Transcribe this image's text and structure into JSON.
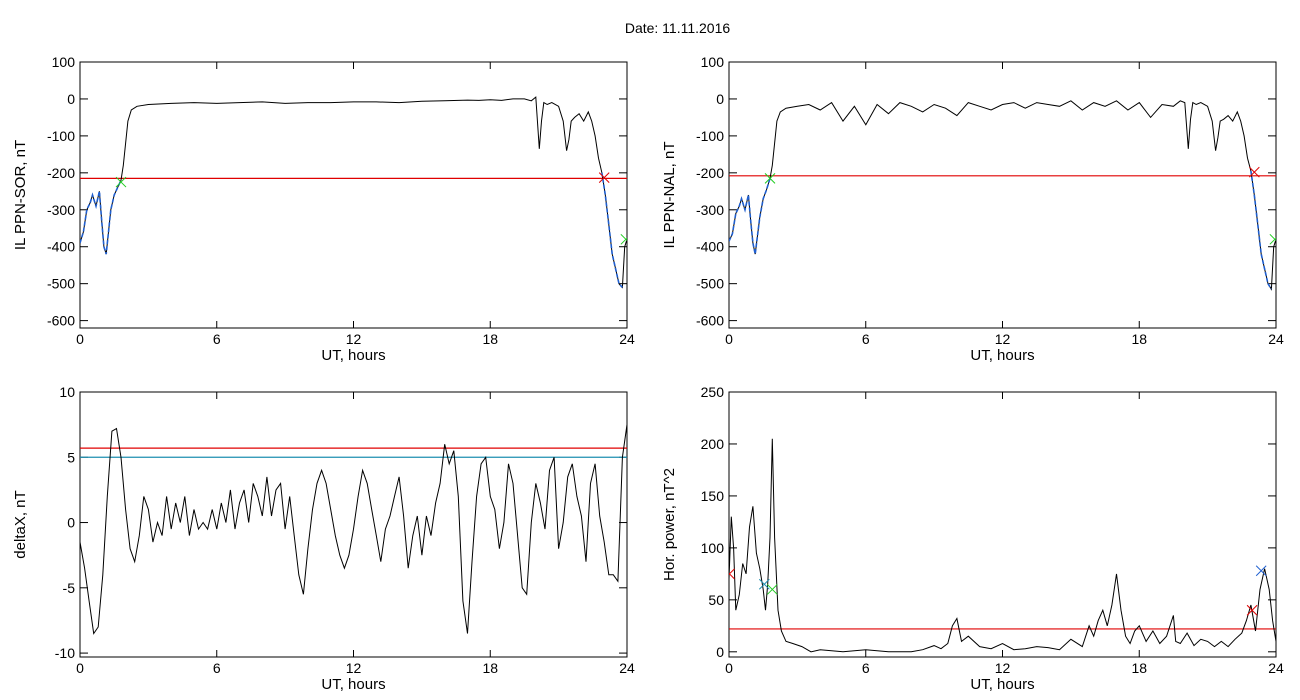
{
  "figure": {
    "title": "Date:  11.11.2016"
  },
  "chart_data": [
    {
      "type": "line",
      "id": "sor",
      "xlabel": "UT, hours",
      "ylabel": "IL PPN-SOR, nT",
      "xlim": [
        0,
        24
      ],
      "ylim": [
        -620,
        100
      ],
      "x_ticks": [
        0,
        6,
        12,
        18,
        24
      ],
      "y_ticks": [
        -600,
        -500,
        -400,
        -300,
        -200,
        -100,
        0,
        100
      ],
      "series": [
        {
          "color": "#000000",
          "x": [
            0,
            0.15,
            0.3,
            0.45,
            0.55,
            0.7,
            0.85,
            0.95,
            1.05,
            1.15,
            1.25,
            1.35,
            1.5,
            1.65,
            1.8,
            1.9,
            2.0,
            2.1,
            2.25,
            2.5,
            3,
            4,
            5,
            6,
            7,
            8,
            9,
            10,
            11,
            12,
            13,
            14,
            15,
            16,
            17,
            17.5,
            18,
            18.5,
            19,
            19.5,
            19.8,
            20.0,
            20.15,
            20.25,
            20.35,
            20.5,
            20.7,
            21.0,
            21.2,
            21.35,
            21.45,
            21.55,
            21.7,
            21.9,
            22.1,
            22.3,
            22.45,
            22.6,
            22.75,
            22.9,
            23.05,
            23.2,
            23.35,
            23.5,
            23.65,
            23.8,
            23.9,
            24.0
          ],
          "y": [
            -390,
            -360,
            -300,
            -280,
            -260,
            -290,
            -250,
            -330,
            -400,
            -420,
            -360,
            -300,
            -260,
            -240,
            -220,
            -180,
            -120,
            -60,
            -30,
            -20,
            -15,
            -12,
            -10,
            -12,
            -10,
            -8,
            -12,
            -10,
            -10,
            -8,
            -8,
            -10,
            -6,
            -5,
            -3,
            -4,
            -2,
            -4,
            0,
            0,
            -5,
            5,
            -135,
            -60,
            -10,
            -15,
            -10,
            -20,
            -60,
            -140,
            -110,
            -60,
            -50,
            -40,
            -60,
            -35,
            -60,
            -100,
            -160,
            -200,
            -260,
            -340,
            -420,
            -460,
            -500,
            -510,
            -400,
            -380
          ]
        },
        {
          "color": "#1f5fd0",
          "x": [
            0,
            0.15,
            0.3,
            0.45,
            0.55,
            0.7,
            0.85,
            0.95,
            1.05,
            1.15,
            1.25,
            1.35,
            1.5,
            1.65,
            1.8
          ],
          "y": [
            -390,
            -360,
            -300,
            -280,
            -260,
            -290,
            -250,
            -330,
            -400,
            -420,
            -360,
            -300,
            -260,
            -240,
            -220
          ]
        },
        {
          "color": "#1f5fd0",
          "x": [
            22.9,
            23.05,
            23.2,
            23.35,
            23.5,
            23.65,
            23.8
          ],
          "y": [
            -200,
            -260,
            -340,
            -420,
            -460,
            -500,
            -510
          ]
        }
      ],
      "hlines": [
        {
          "y": -215,
          "color": "#e00000"
        }
      ],
      "markers": [
        {
          "x": 1.8,
          "y": -225,
          "color": "#22cc22"
        },
        {
          "x": 23.0,
          "y": -213,
          "color": "#e00000"
        },
        {
          "x": 23.95,
          "y": -380,
          "color": "#22cc22"
        }
      ]
    },
    {
      "type": "line",
      "id": "nal",
      "xlabel": "UT, hours",
      "ylabel": "IL PPN-NAL, nT",
      "xlim": [
        0,
        24
      ],
      "ylim": [
        -620,
        100
      ],
      "x_ticks": [
        0,
        6,
        12,
        18,
        24
      ],
      "y_ticks": [
        -600,
        -500,
        -400,
        -300,
        -200,
        -100,
        0,
        100
      ],
      "series": [
        {
          "color": "#000000",
          "x": [
            0,
            0.15,
            0.3,
            0.45,
            0.55,
            0.7,
            0.85,
            0.95,
            1.05,
            1.15,
            1.25,
            1.35,
            1.5,
            1.65,
            1.8,
            1.9,
            2.0,
            2.1,
            2.25,
            2.5,
            3,
            3.5,
            4,
            4.5,
            5,
            5.5,
            6,
            6.5,
            7,
            7.5,
            8,
            8.5,
            9,
            9.5,
            10,
            10.5,
            11,
            11.5,
            12,
            12.5,
            13,
            13.5,
            14,
            14.5,
            15,
            15.5,
            16,
            16.5,
            17,
            17.5,
            18,
            18.5,
            19,
            19.5,
            19.8,
            20.0,
            20.15,
            20.25,
            20.35,
            20.5,
            20.7,
            21.0,
            21.2,
            21.35,
            21.45,
            21.55,
            21.7,
            21.9,
            22.1,
            22.3,
            22.45,
            22.6,
            22.75,
            22.9,
            23.05,
            23.2,
            23.35,
            23.5,
            23.65,
            23.8,
            23.9,
            24.0
          ],
          "y": [
            -385,
            -365,
            -310,
            -290,
            -270,
            -300,
            -260,
            -330,
            -390,
            -420,
            -370,
            -320,
            -270,
            -245,
            -215,
            -180,
            -120,
            -60,
            -35,
            -25,
            -20,
            -15,
            -30,
            -10,
            -60,
            -20,
            -70,
            -15,
            -40,
            -10,
            -20,
            -35,
            -15,
            -25,
            -45,
            -10,
            -20,
            -30,
            -15,
            -10,
            -25,
            -10,
            -15,
            -20,
            -5,
            -30,
            -10,
            -20,
            -5,
            -30,
            -10,
            -50,
            -15,
            -20,
            -5,
            -10,
            -135,
            -55,
            -10,
            -15,
            -10,
            -20,
            -60,
            -140,
            -105,
            -60,
            -55,
            -45,
            -60,
            -35,
            -60,
            -100,
            -160,
            -195,
            -260,
            -340,
            -420,
            -460,
            -500,
            -515,
            -400,
            -380
          ]
        },
        {
          "color": "#1f5fd0",
          "x": [
            0,
            0.15,
            0.3,
            0.45,
            0.55,
            0.7,
            0.85,
            0.95,
            1.05,
            1.15,
            1.25,
            1.35,
            1.5,
            1.65,
            1.8
          ],
          "y": [
            -385,
            -365,
            -310,
            -290,
            -270,
            -300,
            -260,
            -330,
            -390,
            -420,
            -370,
            -320,
            -270,
            -245,
            -215
          ]
        },
        {
          "color": "#1f5fd0",
          "x": [
            22.9,
            23.05,
            23.2,
            23.35,
            23.5,
            23.65,
            23.8
          ],
          "y": [
            -195,
            -260,
            -340,
            -420,
            -460,
            -500,
            -515
          ]
        }
      ],
      "hlines": [
        {
          "y": -208,
          "color": "#e00000"
        }
      ],
      "markers": [
        {
          "x": 1.8,
          "y": -215,
          "color": "#22cc22"
        },
        {
          "x": 23.05,
          "y": -198,
          "color": "#e00000"
        },
        {
          "x": 23.95,
          "y": -380,
          "color": "#22cc22"
        }
      ]
    },
    {
      "type": "line",
      "id": "deltax",
      "xlabel": "UT, hours",
      "ylabel": "deltaX, nT",
      "xlim": [
        0,
        24
      ],
      "ylim": [
        -10.3,
        10
      ],
      "x_ticks": [
        0,
        6,
        12,
        18,
        24
      ],
      "y_ticks": [
        -10,
        -5,
        0,
        5,
        10
      ],
      "series": [
        {
          "color": "#000000",
          "x": [
            0,
            0.2,
            0.4,
            0.6,
            0.8,
            1.0,
            1.2,
            1.4,
            1.6,
            1.8,
            2.0,
            2.2,
            2.4,
            2.6,
            2.8,
            3.0,
            3.2,
            3.4,
            3.6,
            3.8,
            4.0,
            4.2,
            4.4,
            4.6,
            4.8,
            5.0,
            5.2,
            5.4,
            5.6,
            5.8,
            6.0,
            6.2,
            6.4,
            6.6,
            6.8,
            7.0,
            7.2,
            7.4,
            7.6,
            7.8,
            8.0,
            8.2,
            8.4,
            8.6,
            8.8,
            9.0,
            9.2,
            9.4,
            9.6,
            9.8,
            10.0,
            10.2,
            10.4,
            10.6,
            10.8,
            11.0,
            11.2,
            11.4,
            11.6,
            11.8,
            12.0,
            12.2,
            12.4,
            12.6,
            12.8,
            13.0,
            13.2,
            13.4,
            13.6,
            13.8,
            14.0,
            14.2,
            14.4,
            14.6,
            14.8,
            15.0,
            15.2,
            15.4,
            15.6,
            15.8,
            16.0,
            16.2,
            16.4,
            16.6,
            16.8,
            17.0,
            17.2,
            17.4,
            17.6,
            17.8,
            18.0,
            18.2,
            18.4,
            18.6,
            18.8,
            19.0,
            19.2,
            19.4,
            19.6,
            19.8,
            20.0,
            20.2,
            20.4,
            20.6,
            20.8,
            21.0,
            21.2,
            21.4,
            21.6,
            21.8,
            22.0,
            22.2,
            22.4,
            22.6,
            22.8,
            23.0,
            23.2,
            23.4,
            23.6,
            23.8,
            24.0
          ],
          "y": [
            -1.5,
            -3.5,
            -6,
            -8.5,
            -8,
            -4,
            2,
            7,
            7.2,
            5,
            1,
            -2,
            -3,
            -1,
            2,
            1,
            -1.5,
            0,
            -1,
            2,
            -0.5,
            1.5,
            0,
            2,
            -1,
            1,
            -0.5,
            0,
            -0.5,
            1,
            -0.5,
            1.5,
            0,
            2.5,
            -0.5,
            1.5,
            2.5,
            0,
            3,
            2,
            0.5,
            3.5,
            0.5,
            2.5,
            3,
            -0.5,
            2,
            -1,
            -4,
            -5.5,
            -2,
            1,
            3,
            4,
            3,
            1,
            -1,
            -2.5,
            -3.5,
            -2.5,
            -0.5,
            2,
            4,
            3,
            1,
            -1,
            -3,
            -0.5,
            0.5,
            2,
            3.5,
            0.5,
            -3.5,
            -1,
            0.5,
            -2.5,
            0.5,
            -1,
            1.5,
            3,
            6,
            4.5,
            5.5,
            2,
            -6,
            -8.5,
            -3,
            2,
            4.5,
            5,
            2,
            1,
            -2,
            0,
            4.5,
            3,
            -1,
            -5,
            -5.5,
            0,
            3,
            1.5,
            -0.5,
            4,
            5,
            -2,
            0,
            3.5,
            4.5,
            2,
            0.5,
            -3,
            3,
            4.5,
            0.5,
            -1.5,
            -4,
            -4,
            -4.5,
            5,
            7.5
          ]
        }
      ],
      "hlines": [
        {
          "y": 5.7,
          "color": "#e00000"
        },
        {
          "y": 5.0,
          "color": "#1e8fb0"
        }
      ],
      "markers": []
    },
    {
      "type": "line",
      "id": "power",
      "xlabel": "UT, hours",
      "ylabel": "Hor. power, nT^2",
      "xlim": [
        0,
        24
      ],
      "ylim": [
        -5,
        250
      ],
      "x_ticks": [
        0,
        6,
        12,
        18,
        24
      ],
      "y_ticks": [
        0,
        50,
        100,
        150,
        200,
        250
      ],
      "series": [
        {
          "color": "#000000",
          "x": [
            0,
            0.1,
            0.2,
            0.3,
            0.45,
            0.6,
            0.75,
            0.9,
            1.05,
            1.2,
            1.35,
            1.5,
            1.6,
            1.7,
            1.8,
            1.9,
            2.0,
            2.15,
            2.3,
            2.5,
            2.8,
            3.2,
            3.6,
            4,
            5,
            6,
            7,
            8,
            8.5,
            9,
            9.3,
            9.6,
            9.8,
            10,
            10.2,
            10.5,
            11,
            11.5,
            12,
            12.5,
            13,
            13.5,
            14,
            14.5,
            15,
            15.5,
            15.8,
            16.0,
            16.2,
            16.4,
            16.6,
            16.8,
            17.0,
            17.2,
            17.4,
            17.6,
            17.8,
            18,
            18.3,
            18.6,
            18.9,
            19.2,
            19.5,
            19.6,
            19.8,
            20.1,
            20.4,
            20.7,
            21,
            21.3,
            21.6,
            21.9,
            22.2,
            22.5,
            22.7,
            22.9,
            23.1,
            23.3,
            23.5,
            23.7,
            23.85,
            24.0
          ],
          "y": [
            70,
            130,
            100,
            40,
            55,
            85,
            75,
            120,
            140,
            95,
            80,
            60,
            40,
            65,
            110,
            205,
            110,
            40,
            20,
            10,
            8,
            5,
            0,
            2,
            0,
            2,
            0,
            0,
            2,
            6,
            3,
            8,
            25,
            32,
            10,
            15,
            5,
            3,
            8,
            2,
            3,
            5,
            4,
            2,
            12,
            5,
            25,
            15,
            30,
            40,
            25,
            45,
            75,
            40,
            15,
            8,
            20,
            25,
            10,
            20,
            8,
            15,
            35,
            10,
            8,
            18,
            6,
            12,
            10,
            5,
            10,
            5,
            12,
            18,
            30,
            45,
            20,
            60,
            80,
            60,
            30,
            10
          ]
        }
      ],
      "hlines": [
        {
          "y": 22,
          "color": "#e00000"
        }
      ],
      "markers": [
        {
          "x": 1.55,
          "y": 65,
          "color": "#1e8fb0"
        },
        {
          "x": 1.9,
          "y": 60,
          "color": "#22cc22"
        },
        {
          "x": 0.02,
          "y": 75,
          "color": "#e00000"
        },
        {
          "x": 23.35,
          "y": 78,
          "color": "#1e5fd0"
        },
        {
          "x": 22.95,
          "y": 40,
          "color": "#e00000"
        }
      ]
    }
  ]
}
